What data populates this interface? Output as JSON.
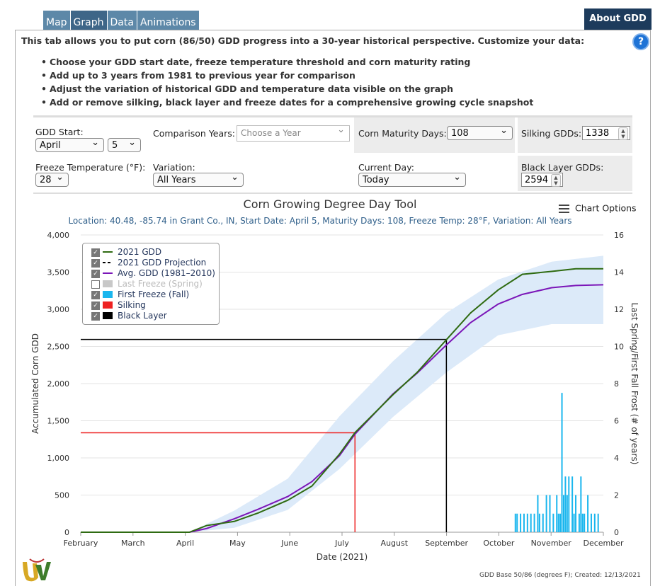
{
  "tabs": [
    "Map",
    "Graph",
    "Data",
    "Animations"
  ],
  "about_button": "About GDD",
  "intro": "This tab allows you to put corn (86/50) GDD progress into a 30-year historical perspective. Customize your data:",
  "help_icon": "?",
  "bullets": [
    "Choose your GDD start date, freeze temperature threshold and corn maturity rating",
    "Add up to 3 years from 1981 to previous year for comparison",
    "Adjust the variation of historical GDD and temperature data visible on the graph",
    "Add or remove silking, black layer and freeze dates for a comprehensive growing cycle snapshot"
  ],
  "controls": {
    "gdd_start_label": "GDD Start:",
    "gdd_start_month": "April",
    "gdd_start_day": "5",
    "comparison_label": "Comparison Years:",
    "comparison_placeholder": "Choose a Year",
    "maturity_label": "Corn Maturity Days:",
    "maturity_value": "108",
    "silking_label": "Silking GDDs:",
    "silking_value": "1338",
    "freeze_label": "Freeze Temperature (°F):",
    "freeze_value": "28",
    "variation_label": "Variation:",
    "variation_value": "All Years",
    "current_day_label": "Current Day:",
    "current_day_value": "Today",
    "black_layer_label": "Black Layer GDDs:",
    "black_layer_value": "2594"
  },
  "chart_options_label": "Chart Options",
  "chart_data": {
    "type": "line",
    "title": "Corn Growing Degree Day Tool",
    "subtitle": "Location: 40.48, -85.74 in Grant Co., IN, Start Date: April 5, Maturity Days: 108, Freeze Temp: 28°F, Variation: All Years",
    "xlabel": "Date (2021)",
    "ylabel_left": "Accumulated Corn GDD",
    "ylabel_right": "Last Spring/First Fall Frost (# of years)",
    "x_ticks": [
      "February",
      "March",
      "April",
      "May",
      "June",
      "July",
      "August",
      "September",
      "October",
      "November",
      "December"
    ],
    "y_left_ticks": [
      "0",
      "500",
      "1,000",
      "1,500",
      "2,000",
      "2,500",
      "3,000",
      "3,500",
      "4,000"
    ],
    "y_right_ticks": [
      "0",
      "2",
      "4",
      "6",
      "8",
      "10",
      "12",
      "14",
      "16"
    ],
    "ylim_left": [
      0,
      4000
    ],
    "ylim_right": [
      0,
      16
    ],
    "xlim": [
      "2021-02-01",
      "2021-12-01"
    ],
    "colors": {
      "gdd_2021": "#2f6b12",
      "avg_gdd": "#7b16b8",
      "variation_band": "#dceaf9",
      "first_freeze": "#1ab6ee",
      "silking": "#ee2222",
      "black_layer": "#000000",
      "last_freeze": "#c8c8c8"
    },
    "series": [
      {
        "name": "2021 GDD",
        "points": [
          [
            "2021-02-01",
            0
          ],
          [
            "2021-04-05",
            0
          ],
          [
            "2021-04-15",
            90
          ],
          [
            "2021-05-01",
            145
          ],
          [
            "2021-05-15",
            260
          ],
          [
            "2021-06-01",
            430
          ],
          [
            "2021-06-15",
            620
          ],
          [
            "2021-07-01",
            1050
          ],
          [
            "2021-07-10",
            1340
          ],
          [
            "2021-08-01",
            1850
          ],
          [
            "2021-08-15",
            2150
          ],
          [
            "2021-09-01",
            2590
          ],
          [
            "2021-09-15",
            2950
          ],
          [
            "2021-10-01",
            3260
          ],
          [
            "2021-10-15",
            3470
          ],
          [
            "2021-11-01",
            3510
          ],
          [
            "2021-11-15",
            3545
          ],
          [
            "2021-12-01",
            3545
          ]
        ]
      },
      {
        "name": "2021 GDD Projection",
        "points": []
      },
      {
        "name": "Avg. GDD (1981-2010)",
        "points": [
          [
            "2021-04-05",
            0
          ],
          [
            "2021-04-15",
            50
          ],
          [
            "2021-05-01",
            180
          ],
          [
            "2021-05-15",
            310
          ],
          [
            "2021-06-01",
            480
          ],
          [
            "2021-06-15",
            680
          ],
          [
            "2021-07-01",
            1030
          ],
          [
            "2021-07-10",
            1320
          ],
          [
            "2021-08-01",
            1860
          ],
          [
            "2021-08-15",
            2140
          ],
          [
            "2021-09-01",
            2520
          ],
          [
            "2021-09-15",
            2820
          ],
          [
            "2021-10-01",
            3070
          ],
          [
            "2021-10-15",
            3200
          ],
          [
            "2021-11-01",
            3290
          ],
          [
            "2021-11-15",
            3320
          ],
          [
            "2021-12-01",
            3330
          ]
        ]
      }
    ],
    "variation_band": [
      [
        "2021-04-05",
        0,
        0
      ],
      [
        "2021-05-01",
        60,
        290
      ],
      [
        "2021-06-01",
        300,
        720
      ],
      [
        "2021-07-01",
        850,
        1560
      ],
      [
        "2021-08-01",
        1550,
        2300
      ],
      [
        "2021-09-01",
        2150,
        2950
      ],
      [
        "2021-10-01",
        2650,
        3400
      ],
      [
        "2021-11-01",
        2800,
        3640
      ],
      [
        "2021-12-01",
        2800,
        3720
      ]
    ],
    "silking": {
      "date": "2021-07-10",
      "gdd": 1338
    },
    "black_layer": {
      "date": "2021-09-01",
      "gdd": 2594
    },
    "first_freeze_fall": [
      [
        "2021-10-11",
        1
      ],
      [
        "2021-10-12",
        1
      ],
      [
        "2021-10-14",
        1
      ],
      [
        "2021-10-16",
        1
      ],
      [
        "2021-10-18",
        1
      ],
      [
        "2021-10-20",
        1
      ],
      [
        "2021-10-22",
        1
      ],
      [
        "2021-10-24",
        2
      ],
      [
        "2021-10-25",
        1
      ],
      [
        "2021-10-27",
        1
      ],
      [
        "2021-10-29",
        2
      ],
      [
        "2021-10-31",
        2
      ],
      [
        "2021-11-02",
        1
      ],
      [
        "2021-11-04",
        2
      ],
      [
        "2021-11-05",
        1
      ],
      [
        "2021-11-06",
        1
      ],
      [
        "2021-11-07",
        7.5
      ],
      [
        "2021-11-08",
        2
      ],
      [
        "2021-11-09",
        3
      ],
      [
        "2021-11-10",
        2
      ],
      [
        "2021-11-11",
        3
      ],
      [
        "2021-11-13",
        3
      ],
      [
        "2021-11-14",
        1
      ],
      [
        "2021-11-15",
        2
      ],
      [
        "2021-11-17",
        1
      ],
      [
        "2021-11-18",
        3
      ],
      [
        "2021-11-19",
        1
      ],
      [
        "2021-11-20",
        1
      ],
      [
        "2021-11-22",
        2
      ],
      [
        "2021-11-24",
        1
      ],
      [
        "2021-11-26",
        1
      ],
      [
        "2021-11-28",
        1
      ]
    ],
    "legend": [
      {
        "label": "2021 GDD",
        "checked": true
      },
      {
        "label": "2021 GDD Projection",
        "checked": true
      },
      {
        "label": "Avg. GDD (1981–2010)",
        "checked": true
      },
      {
        "label": "Last Freeze (Spring)",
        "checked": false
      },
      {
        "label": "First Freeze (Fall)",
        "checked": true
      },
      {
        "label": "Silking",
        "checked": true
      },
      {
        "label": "Black Layer",
        "checked": true
      }
    ]
  },
  "footer": "GDD Base 50/86 (degrees F); Created: 12/13/2021"
}
